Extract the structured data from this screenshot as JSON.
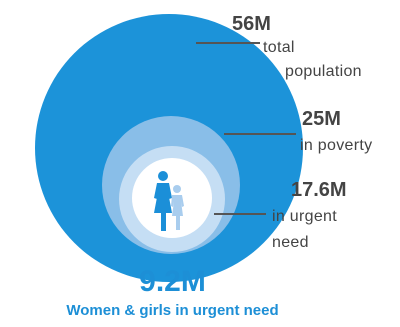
{
  "rings": [
    {
      "value": "56M",
      "label_lines": [
        "total",
        "population"
      ],
      "color": "#1c93d9"
    },
    {
      "value": "25M",
      "label_lines": [
        "in poverty"
      ],
      "color": "#89bee8"
    },
    {
      "value": "17.6M",
      "label_lines": [
        "in  urgent",
        "need"
      ],
      "color": "#c5def4"
    }
  ],
  "center_color": "#ffffff",
  "figure_colors": {
    "woman": "#1b8fd8",
    "girl": "#a9cdee"
  },
  "headline": {
    "value": "9.2M",
    "caption": "Women & girls in urgent need"
  }
}
